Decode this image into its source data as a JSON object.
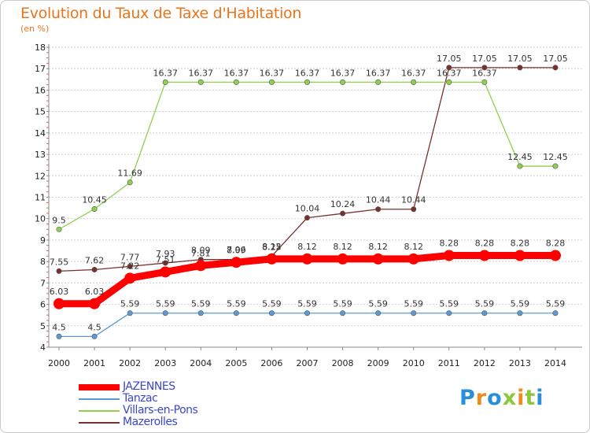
{
  "title": "Evolution du Taux de Taxe d'Habitation",
  "unit": "(en %)",
  "logo": {
    "text": "Proxiti",
    "letter_colors": [
      "#2a8fd6",
      "#f08a1c",
      "#2a8fd6",
      "#8dc63f",
      "#f08a1c",
      "#8dc63f",
      "#2a8fd6"
    ]
  },
  "chart_data": {
    "type": "line",
    "x": [
      2000,
      2001,
      2002,
      2003,
      2004,
      2005,
      2006,
      2007,
      2008,
      2009,
      2010,
      2011,
      2012,
      2013,
      2014
    ],
    "xticks": [
      "2000",
      "2001",
      "2002",
      "2003",
      "2004",
      "2005",
      "2006",
      "2007",
      "2008",
      "2009",
      "2010",
      "2011",
      "2012",
      "2013",
      "2014"
    ],
    "ylim": [
      4,
      18
    ],
    "yticks": [
      "4",
      "5",
      "6",
      "7",
      "8",
      "9",
      "10",
      "11",
      "12",
      "13",
      "14",
      "15",
      "16",
      "17",
      "18"
    ],
    "grid": "horizontal",
    "legend_position": "bottom-left",
    "series": [
      {
        "name": "JAZENNES",
        "color": "#ff0000",
        "values": [
          6.03,
          6.03,
          7.22,
          7.51,
          7.81,
          7.96,
          8.12,
          8.12,
          8.12,
          8.12,
          8.12,
          8.28,
          8.28,
          8.28,
          8.28
        ],
        "labels": [
          "6.03",
          "6.03",
          "7.22",
          "7.51",
          "7.81",
          "7.96",
          "8.12",
          "8.12",
          "8.12",
          "8.12",
          "8.12",
          "8.28",
          "8.28",
          "8.28",
          "8.28"
        ]
      },
      {
        "name": "Tanzac",
        "color": "#5b9bd5",
        "values": [
          4.5,
          4.5,
          5.59,
          5.59,
          5.59,
          5.59,
          5.59,
          5.59,
          5.59,
          5.59,
          5.59,
          5.59,
          5.59,
          5.59,
          5.59
        ],
        "labels": [
          "4.5",
          "4.5",
          "5.59",
          "5.59",
          "5.59",
          "5.59",
          "5.59",
          "5.59",
          "5.59",
          "5.59",
          "5.59",
          "5.59",
          "5.59",
          "5.59",
          "5.59"
        ]
      },
      {
        "name": "Villars-en-Pons",
        "color": "#8fd14f",
        "values": [
          9.5,
          10.45,
          11.69,
          16.37,
          16.37,
          16.37,
          16.37,
          16.37,
          16.37,
          16.37,
          16.37,
          16.37,
          16.37,
          12.45,
          12.45
        ],
        "labels": [
          "9.5",
          "10.45",
          "11.69",
          "16.37",
          "16.37",
          "16.37",
          "16.37",
          "16.37",
          "16.37",
          "16.37",
          "16.37",
          "16.37",
          "16.37",
          "12.45",
          "12.45"
        ]
      },
      {
        "name": "Mazerolles",
        "color": "#7a2f2f",
        "values": [
          7.55,
          7.62,
          7.77,
          7.93,
          8.09,
          8.09,
          8.25,
          10.04,
          10.24,
          10.44,
          10.44,
          17.05,
          17.05,
          17.05,
          17.05
        ],
        "labels": [
          "7.55",
          "7.62",
          "7.77",
          "7.93",
          "8.09",
          "8.09",
          "8.25",
          "10.04",
          "10.24",
          "10.44",
          "10.44",
          "17.05",
          "17.05",
          "17.05",
          "17.05"
        ]
      }
    ]
  }
}
